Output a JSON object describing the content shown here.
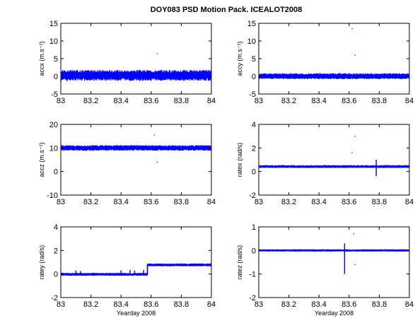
{
  "figure": {
    "title": "DOY083 PSD Motion Pack. ICEALOT2008",
    "signal_color": "#0000ff"
  },
  "chart_data": [
    {
      "type": "line",
      "id": "accx",
      "xlabel": "",
      "ylabel": "accx (m.s⁻²)",
      "xlim": [
        83,
        84
      ],
      "ylim": [
        -5,
        15
      ],
      "xticks": [
        "83",
        "83.2",
        "83.4",
        "83.6",
        "83.8",
        "84"
      ],
      "yticks": [
        "-5",
        "0",
        "5",
        "10",
        "15"
      ],
      "grid": false,
      "signal": {
        "mean": 0.3,
        "band_low": -1.3,
        "band_high": 1.8,
        "outliers": [
          [
            83.64,
            6.4
          ]
        ]
      },
      "steps": []
    },
    {
      "type": "line",
      "id": "accy",
      "xlabel": "",
      "ylabel": "accy (m.s⁻²)",
      "xlim": [
        83,
        84
      ],
      "ylim": [
        -5,
        15
      ],
      "xticks": [
        "83",
        "83.2",
        "83.4",
        "83.6",
        "83.8",
        "84"
      ],
      "yticks": [
        "-5",
        "0",
        "5",
        "10",
        "15"
      ],
      "grid": false,
      "signal": {
        "mean": 0.0,
        "band_low": -0.8,
        "band_high": 0.9,
        "outliers": [
          [
            83.62,
            13.5
          ],
          [
            83.64,
            6.0
          ]
        ]
      },
      "steps": []
    },
    {
      "type": "line",
      "id": "accz",
      "xlabel": "",
      "ylabel": "accz (m.s⁻²)",
      "xlim": [
        83,
        84
      ],
      "ylim": [
        -10,
        20
      ],
      "xticks": [
        "83",
        "83.2",
        "83.4",
        "83.6",
        "83.8",
        "84"
      ],
      "yticks": [
        "-10",
        "0",
        "10",
        "20"
      ],
      "grid": false,
      "signal": {
        "mean": 10.0,
        "band_low": 8.8,
        "band_high": 11.2,
        "outliers": [
          [
            83.64,
            4.0
          ],
          [
            83.62,
            15.5
          ]
        ]
      },
      "steps": []
    },
    {
      "type": "line",
      "id": "ratex",
      "xlabel": "",
      "ylabel": "ratex (rad/s)",
      "xlim": [
        83,
        84
      ],
      "ylim": [
        -2,
        4
      ],
      "xticks": [
        "83",
        "83.2",
        "83.4",
        "83.6",
        "83.8",
        "84"
      ],
      "yticks": [
        "-2",
        "0",
        "2",
        "4"
      ],
      "grid": false,
      "signal": {
        "mean": 0.4,
        "band_low": 0.3,
        "band_high": 0.55,
        "outliers": [
          [
            83.64,
            3.0
          ],
          [
            83.62,
            1.6
          ]
        ]
      },
      "spikes": [
        [
          83.78,
          -0.4,
          1.0
        ]
      ],
      "steps": []
    },
    {
      "type": "line",
      "id": "ratey",
      "xlabel": "Yearday 2008",
      "ylabel": "ratey (rad/s)",
      "xlim": [
        83,
        84
      ],
      "ylim": [
        -2,
        4
      ],
      "xticks": [
        "83",
        "83.2",
        "83.4",
        "83.6",
        "83.8",
        "84"
      ],
      "yticks": [
        "-2",
        "0",
        "2",
        "4"
      ],
      "grid": false,
      "signal": {
        "mean": -0.05,
        "band_low": -0.15,
        "band_high": 0.1,
        "outliers": []
      },
      "steps": [
        [
          83.0,
          -0.05
        ],
        [
          83.575,
          -0.05
        ],
        [
          83.575,
          0.75
        ],
        [
          84.0,
          0.75
        ]
      ],
      "spikes": [
        [
          83.1,
          -0.1,
          0.3
        ],
        [
          83.13,
          -0.1,
          0.25
        ],
        [
          83.4,
          -0.1,
          0.3
        ],
        [
          83.46,
          -0.1,
          0.35
        ],
        [
          83.49,
          -0.1,
          0.3
        ],
        [
          83.55,
          -0.1,
          0.35
        ]
      ]
    },
    {
      "type": "line",
      "id": "ratez",
      "xlabel": "Yearday 2008",
      "ylabel": "ratez (rad/s)",
      "xlim": [
        83,
        84
      ],
      "ylim": [
        -2,
        1
      ],
      "xticks": [
        "83",
        "83.2",
        "83.4",
        "83.6",
        "83.8",
        "84"
      ],
      "yticks": [
        "-2",
        "-1",
        "0",
        "1"
      ],
      "grid": false,
      "signal": {
        "mean": 0.0,
        "band_low": -0.05,
        "band_high": 0.05,
        "outliers": [
          [
            83.63,
            0.7
          ],
          [
            83.64,
            -0.6
          ]
        ]
      },
      "spikes": [
        [
          83.57,
          -1.0,
          0.3
        ]
      ],
      "steps": []
    }
  ]
}
